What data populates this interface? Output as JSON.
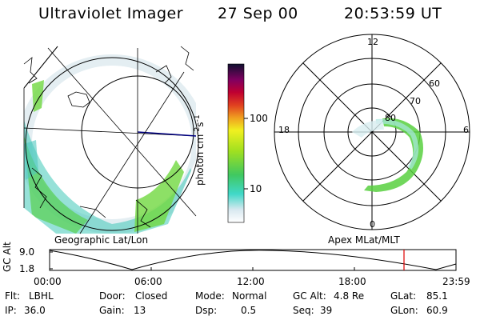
{
  "header": {
    "instrument": "Ultraviolet Imager",
    "date": "27 Sep 00",
    "time": "20:53:59 UT"
  },
  "colorbar": {
    "label": "photon cm-2s-1",
    "ticks": [
      "100",
      "10"
    ]
  },
  "geo_panel": {
    "caption": "Geographic Lat/Lon"
  },
  "polar_panel": {
    "caption": "Apex MLat/MLT",
    "mlt_labels": {
      "top": "12",
      "right": "6",
      "bottom": "0",
      "left": "18"
    },
    "lat_labels": [
      "60",
      "70",
      "80"
    ]
  },
  "altitude_plot": {
    "axis_label": "GC Alt",
    "y_ticks": [
      "9.0",
      "1.8"
    ],
    "x_ticks": [
      "00:00",
      "06:00",
      "12:00",
      "18:00",
      "23:59"
    ],
    "marker_color": "#e00000"
  },
  "status": {
    "flt_label": "Flt:",
    "flt_value": "LBHL",
    "ip_label": "IP:",
    "ip_value": "36.0",
    "door_label": "Door:",
    "door_value": "Closed",
    "gain_label": "Gain:",
    "gain_value": "13",
    "mode_label": "Mode:",
    "mode_value": "Normal",
    "dsp_label": "Dsp:",
    "dsp_value": "0.5",
    "gcalt_label": "GC Alt:",
    "gcalt_value": "4.8 Re",
    "seq_label": "Seq:",
    "seq_value": "39",
    "glat_label": "GLat:",
    "glat_value": "85.1",
    "glon_label": "GLon:",
    "glon_value": "60.9"
  }
}
